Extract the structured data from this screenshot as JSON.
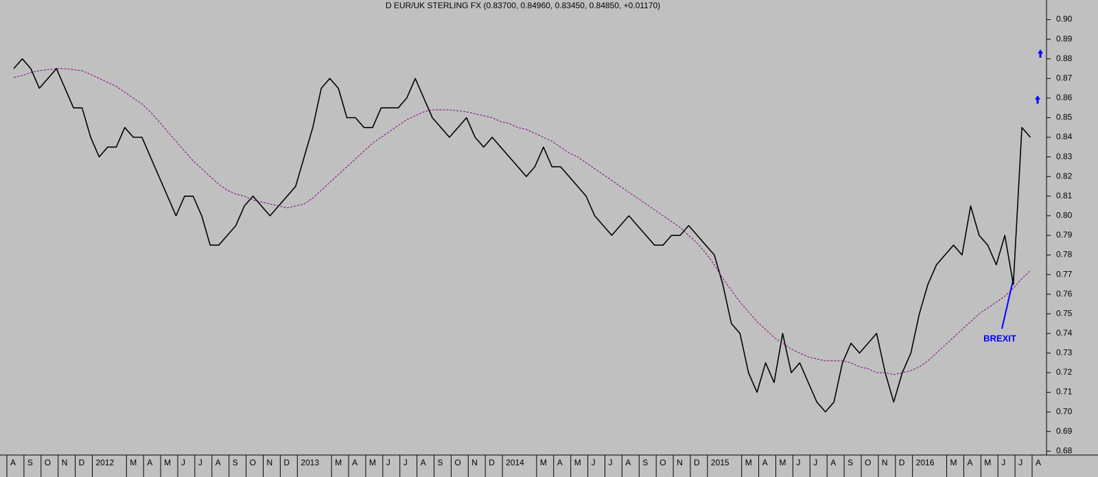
{
  "chart_data": {
    "type": "line",
    "title": "D EUR/UK STERLING FX (0.83700, 0.84960, 0.83450, 0.84850, +0.01170)",
    "annotation": "BREXIT",
    "categories": [
      "A",
      null,
      "S",
      null,
      "O",
      null,
      "N",
      null,
      "D",
      null,
      "2012",
      null,
      null,
      null,
      "M",
      null,
      "A",
      null,
      "M",
      null,
      "J",
      null,
      "J",
      null,
      "A",
      null,
      "S",
      null,
      "O",
      null,
      "N",
      null,
      "D",
      null,
      "2013",
      null,
      null,
      null,
      "M",
      null,
      "A",
      null,
      "M",
      null,
      "J",
      null,
      "J",
      null,
      "A",
      null,
      "S",
      null,
      "O",
      null,
      "N",
      null,
      "D",
      null,
      "2014",
      null,
      null,
      null,
      "M",
      null,
      "A",
      null,
      "M",
      null,
      "J",
      null,
      "J",
      null,
      "A",
      null,
      "S",
      null,
      "O",
      null,
      "N",
      null,
      "D",
      null,
      "2015",
      null,
      null,
      null,
      "M",
      null,
      "A",
      null,
      "M",
      null,
      "J",
      null,
      "J",
      null,
      "A",
      null,
      "S",
      null,
      "O",
      null,
      "N",
      null,
      "D",
      null,
      "2016",
      null,
      null,
      null,
      "M",
      null,
      "A",
      null,
      "M",
      null,
      "J",
      null,
      "J",
      null,
      "A"
    ],
    "series": [
      {
        "name": "EUR/UK STERLING",
        "color": "#000000",
        "dashed": false,
        "values": [
          0.875,
          0.88,
          0.875,
          0.865,
          0.87,
          0.875,
          0.865,
          0.855,
          0.855,
          0.84,
          0.83,
          0.835,
          0.835,
          0.845,
          0.84,
          0.84,
          0.83,
          0.82,
          0.81,
          0.8,
          0.81,
          0.81,
          0.8,
          0.785,
          0.785,
          0.79,
          0.795,
          0.805,
          0.81,
          0.805,
          0.8,
          0.805,
          0.81,
          0.815,
          0.83,
          0.845,
          0.865,
          0.87,
          0.865,
          0.85,
          0.85,
          0.845,
          0.845,
          0.855,
          0.855,
          0.855,
          0.86,
          0.87,
          0.86,
          0.85,
          0.845,
          0.84,
          0.845,
          0.85,
          0.84,
          0.835,
          0.84,
          0.835,
          0.83,
          0.825,
          0.82,
          0.825,
          0.835,
          0.825,
          0.825,
          0.82,
          0.815,
          0.81,
          0.8,
          0.795,
          0.79,
          0.795,
          0.8,
          0.795,
          0.79,
          0.785,
          0.785,
          0.79,
          0.79,
          0.795,
          0.79,
          0.785,
          0.78,
          0.765,
          0.745,
          0.74,
          0.72,
          0.71,
          0.725,
          0.715,
          0.74,
          0.72,
          0.725,
          0.715,
          0.705,
          0.7,
          0.705,
          0.725,
          0.735,
          0.73,
          0.735,
          0.74,
          0.72,
          0.705,
          0.72,
          0.73,
          0.75,
          0.765,
          0.775,
          0.78,
          0.785,
          0.78,
          0.805,
          0.79,
          0.785,
          0.775,
          0.79,
          0.765,
          0.845,
          0.84,
          null
        ]
      },
      {
        "name": "Moving average",
        "color": "#800080",
        "dashed": true,
        "values": [
          0.8705,
          0.8715,
          0.873,
          0.874,
          0.8745,
          0.875,
          0.875,
          0.8745,
          0.874,
          0.872,
          0.87,
          0.868,
          0.866,
          0.863,
          0.86,
          0.857,
          0.853,
          0.848,
          0.843,
          0.838,
          0.833,
          0.828,
          0.824,
          0.82,
          0.816,
          0.813,
          0.811,
          0.81,
          0.808,
          0.807,
          0.806,
          0.805,
          0.804,
          0.805,
          0.806,
          0.809,
          0.813,
          0.817,
          0.821,
          0.825,
          0.829,
          0.833,
          0.837,
          0.84,
          0.843,
          0.846,
          0.849,
          0.851,
          0.853,
          0.854,
          0.854,
          0.854,
          0.8535,
          0.853,
          0.852,
          0.851,
          0.85,
          0.848,
          0.847,
          0.845,
          0.844,
          0.842,
          0.84,
          0.838,
          0.835,
          0.832,
          0.83,
          0.827,
          0.824,
          0.821,
          0.818,
          0.815,
          0.812,
          0.809,
          0.806,
          0.803,
          0.8,
          0.797,
          0.794,
          0.79,
          0.786,
          0.781,
          0.775,
          0.768,
          0.762,
          0.756,
          0.751,
          0.746,
          0.742,
          0.738,
          0.735,
          0.732,
          0.73,
          0.728,
          0.727,
          0.726,
          0.726,
          0.726,
          0.725,
          0.723,
          0.722,
          0.72,
          0.72,
          0.719,
          0.72,
          0.721,
          0.723,
          0.726,
          0.73,
          0.734,
          0.738,
          0.742,
          0.746,
          0.75,
          0.753,
          0.756,
          0.759,
          0.763,
          0.768,
          0.772,
          null
        ]
      }
    ],
    "ylim": [
      0.678,
      0.91
    ],
    "yticks": [
      {
        "value": 0.68,
        "label": "0.68"
      },
      {
        "value": 0.69,
        "label": "0.69"
      },
      {
        "value": 0.7,
        "label": "0.70"
      },
      {
        "value": 0.71,
        "label": "0.71"
      },
      {
        "value": 0.72,
        "label": "0.72"
      },
      {
        "value": 0.73,
        "label": "0.73"
      },
      {
        "value": 0.74,
        "label": "0.74"
      },
      {
        "value": 0.75,
        "label": "0.75"
      },
      {
        "value": 0.76,
        "label": "0.76"
      },
      {
        "value": 0.77,
        "label": "0.77"
      },
      {
        "value": 0.78,
        "label": "0.78"
      },
      {
        "value": 0.79,
        "label": "0.79"
      },
      {
        "value": 0.8,
        "label": "0.80"
      },
      {
        "value": 0.81,
        "label": "0.81"
      },
      {
        "value": 0.82,
        "label": "0.82"
      },
      {
        "value": 0.83,
        "label": "0.83"
      },
      {
        "value": 0.84,
        "label": "0.84"
      },
      {
        "value": 0.85,
        "label": "0.85"
      },
      {
        "value": 0.86,
        "label": "0.86"
      },
      {
        "value": 0.87,
        "label": "0.87"
      },
      {
        "value": 0.88,
        "label": "0.88"
      },
      {
        "value": 0.89,
        "label": "0.89"
      },
      {
        "value": 0.9,
        "label": "0.90"
      }
    ],
    "y_axis_side": "right",
    "grid": false
  }
}
